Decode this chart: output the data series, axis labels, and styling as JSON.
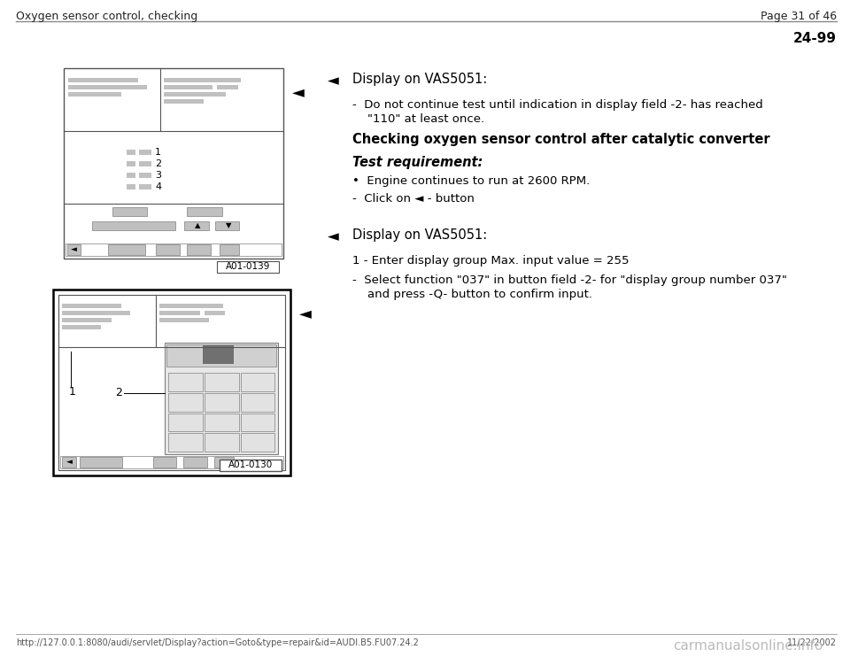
{
  "bg_color": "#ffffff",
  "header_text_left": "Oxygen sensor control, checking",
  "header_text_right": "Page 31 of 46",
  "section_number": "24-99",
  "footer_url": "http://127.0.0.1:8080/audi/servlet/Display?action=Goto&type=repair&id=AUDI.B5.FU07.24.2",
  "footer_date": "11/22/2002",
  "footer_logo": "carmanualsonline.info",
  "block1": {
    "arrow_symbol": "◄",
    "title": "Display on VAS5051:",
    "line1": "-  Do not continue test until indication in display field -2- has reached",
    "line2": "    \"110\" at least once.",
    "heading": "Checking oxygen sensor control after catalytic converter",
    "req_title": "Test requirement:",
    "bullet1": "•  Engine continues to run at 2600 RPM.",
    "bullet2": "-  Click on ◄ - button",
    "image_label": "A01-0139"
  },
  "block2": {
    "arrow_symbol": "◄",
    "title": "Display on VAS5051:",
    "line1": "1 - Enter display group Max. input value = 255",
    "line2a": "-  Select function \"037\" in button field -2- for \"display group number 037\"",
    "line2b": "    and press -Q- button to confirm input.",
    "image_label": "A01-0130"
  }
}
